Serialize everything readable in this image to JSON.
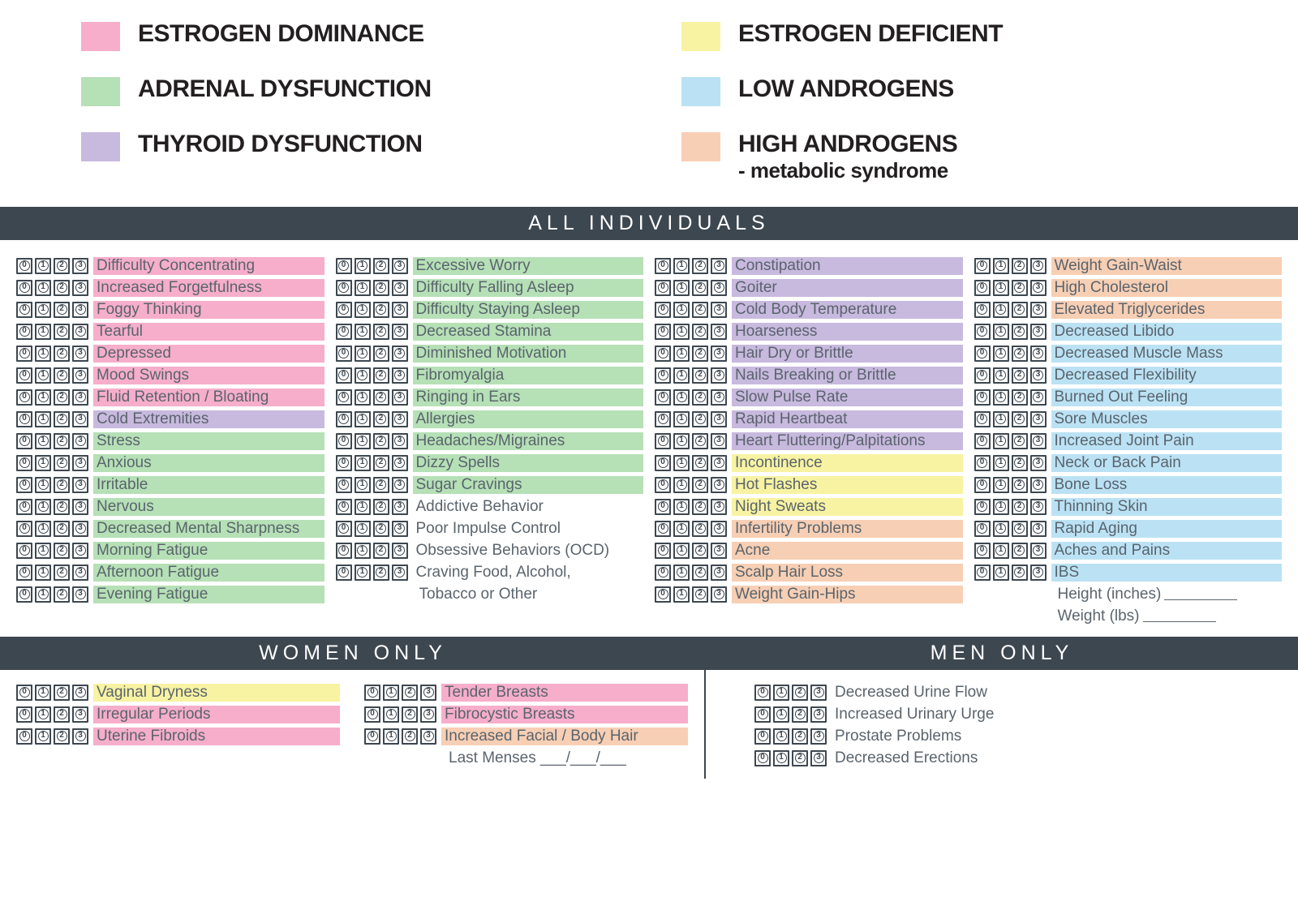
{
  "legend": [
    {
      "label": "ESTROGEN DOMINANCE",
      "color": "#F6AECB",
      "colorClass": "c-pink"
    },
    {
      "label": "ESTROGEN DEFICIENT",
      "color": "#F8F3A2",
      "colorClass": "c-yellow"
    },
    {
      "label": "ADRENAL DYSFUNCTION",
      "color": "#B6E0B6",
      "colorClass": "c-green"
    },
    {
      "label": "LOW ANDROGENS",
      "color": "#BBE2F4",
      "colorClass": "c-blue"
    },
    {
      "label": "THYROID DYSFUNCTION",
      "color": "#C8B9DE",
      "colorClass": "c-purple"
    },
    {
      "label": "HIGH ANDROGENS",
      "sublabel": "- metabolic syndrome",
      "color": "#F7CFB4",
      "colorClass": "c-orange"
    }
  ],
  "scale_values": [
    "0",
    "1",
    "2",
    "3"
  ],
  "sections": {
    "all_title": "ALL INDIVIDUALS",
    "women_title": "WOMEN ONLY",
    "men_title": "MEN ONLY"
  },
  "columns": [
    [
      {
        "label": "Difficulty Concentrating",
        "c": "c-pink"
      },
      {
        "label": "Increased Forgetfulness",
        "c": "c-pink"
      },
      {
        "label": "Foggy Thinking",
        "c": "c-pink"
      },
      {
        "label": "Tearful",
        "c": "c-pink"
      },
      {
        "label": "Depressed",
        "c": "c-pink"
      },
      {
        "label": "Mood Swings",
        "c": "c-pink"
      },
      {
        "label": "Fluid Retention / Bloating",
        "c": "c-pink"
      },
      {
        "label": "Cold Extremities",
        "c": "c-purple"
      },
      {
        "label": "Stress",
        "c": "c-green"
      },
      {
        "label": "Anxious",
        "c": "c-green"
      },
      {
        "label": "Irritable",
        "c": "c-green"
      },
      {
        "label": "Nervous",
        "c": "c-green"
      },
      {
        "label": "Decreased Mental Sharpness",
        "c": "c-green"
      },
      {
        "label": "Morning Fatigue",
        "c": "c-green"
      },
      {
        "label": "Afternoon Fatigue",
        "c": "c-green"
      },
      {
        "label": "Evening Fatigue",
        "c": "c-green"
      }
    ],
    [
      {
        "label": "Excessive Worry",
        "c": "c-green"
      },
      {
        "label": "Difficulty Falling Asleep",
        "c": "c-green"
      },
      {
        "label": "Difficulty Staying Asleep",
        "c": "c-green"
      },
      {
        "label": "Decreased Stamina",
        "c": "c-green"
      },
      {
        "label": "Diminished Motivation",
        "c": "c-green"
      },
      {
        "label": "Fibromyalgia",
        "c": "c-green"
      },
      {
        "label": "Ringing in Ears",
        "c": "c-green"
      },
      {
        "label": "Allergies",
        "c": "c-green"
      },
      {
        "label": "Headaches/Migraines",
        "c": "c-green"
      },
      {
        "label": "Dizzy Spells",
        "c": "c-green"
      },
      {
        "label": "Sugar Cravings",
        "c": "c-green"
      },
      {
        "label": "Addictive Behavior",
        "c": "c-none"
      },
      {
        "label": "Poor Impulse Control",
        "c": "c-none"
      },
      {
        "label": "Obsessive Behaviors (OCD)",
        "c": "c-none"
      },
      {
        "label": "Craving Food, Alcohol,",
        "c": "c-none",
        "cont": "Tobacco or Other"
      }
    ],
    [
      {
        "label": "Constipation",
        "c": "c-purple"
      },
      {
        "label": "Goiter",
        "c": "c-purple"
      },
      {
        "label": "Cold Body Temperature",
        "c": "c-purple"
      },
      {
        "label": "Hoarseness",
        "c": "c-purple"
      },
      {
        "label": "Hair Dry or Brittle",
        "c": "c-purple"
      },
      {
        "label": "Nails Breaking or Brittle",
        "c": "c-purple"
      },
      {
        "label": "Slow Pulse Rate",
        "c": "c-purple"
      },
      {
        "label": "Rapid Heartbeat",
        "c": "c-purple"
      },
      {
        "label": "Heart Fluttering/Palpitations",
        "c": "c-purple"
      },
      {
        "label": "Incontinence",
        "c": "c-yellow"
      },
      {
        "label": "Hot Flashes",
        "c": "c-yellow"
      },
      {
        "label": "Night Sweats",
        "c": "c-yellow"
      },
      {
        "label": "Infertility Problems",
        "c": "c-orange"
      },
      {
        "label": "Acne",
        "c": "c-orange"
      },
      {
        "label": "Scalp Hair Loss",
        "c": "c-orange"
      },
      {
        "label": "Weight Gain-Hips",
        "c": "c-orange"
      }
    ],
    [
      {
        "label": "Weight Gain-Waist",
        "c": "c-orange"
      },
      {
        "label": "High Cholesterol",
        "c": "c-orange"
      },
      {
        "label": "Elevated Triglycerides",
        "c": "c-orange"
      },
      {
        "label": "Decreased Libido",
        "c": "c-blue"
      },
      {
        "label": "Decreased Muscle Mass",
        "c": "c-blue"
      },
      {
        "label": "Decreased Flexibility",
        "c": "c-blue"
      },
      {
        "label": "Burned Out Feeling",
        "c": "c-blue"
      },
      {
        "label": "Sore Muscles",
        "c": "c-blue"
      },
      {
        "label": "Increased Joint Pain",
        "c": "c-blue"
      },
      {
        "label": "Neck or Back Pain",
        "c": "c-blue"
      },
      {
        "label": "Bone Loss",
        "c": "c-blue"
      },
      {
        "label": "Thinning Skin",
        "c": "c-blue"
      },
      {
        "label": "Rapid Aging",
        "c": "c-blue"
      },
      {
        "label": "Aches and Pains",
        "c": "c-blue"
      },
      {
        "label": "IBS",
        "c": "c-blue"
      }
    ]
  ],
  "col4_extras": [
    {
      "label": "Height (inches)"
    },
    {
      "label": "Weight (lbs)"
    }
  ],
  "women": {
    "left": [
      {
        "label": "Vaginal Dryness",
        "c": "c-yellow"
      },
      {
        "label": "Irregular Periods",
        "c": "c-pink"
      },
      {
        "label": "Uterine Fibroids",
        "c": "c-pink"
      }
    ],
    "right": [
      {
        "label": "Tender Breasts",
        "c": "c-pink"
      },
      {
        "label": "Fibrocystic Breasts",
        "c": "c-pink"
      },
      {
        "label": "Increased Facial / Body Hair",
        "c": "c-orange"
      }
    ],
    "last_menses": "Last Menses ___/___/___"
  },
  "men": [
    {
      "label": "Decreased Urine Flow",
      "c": "c-none"
    },
    {
      "label": "Increased Urinary Urge",
      "c": "c-none"
    },
    {
      "label": "Prostate Problems",
      "c": "c-none"
    },
    {
      "label": "Decreased Erections",
      "c": "c-none"
    }
  ]
}
